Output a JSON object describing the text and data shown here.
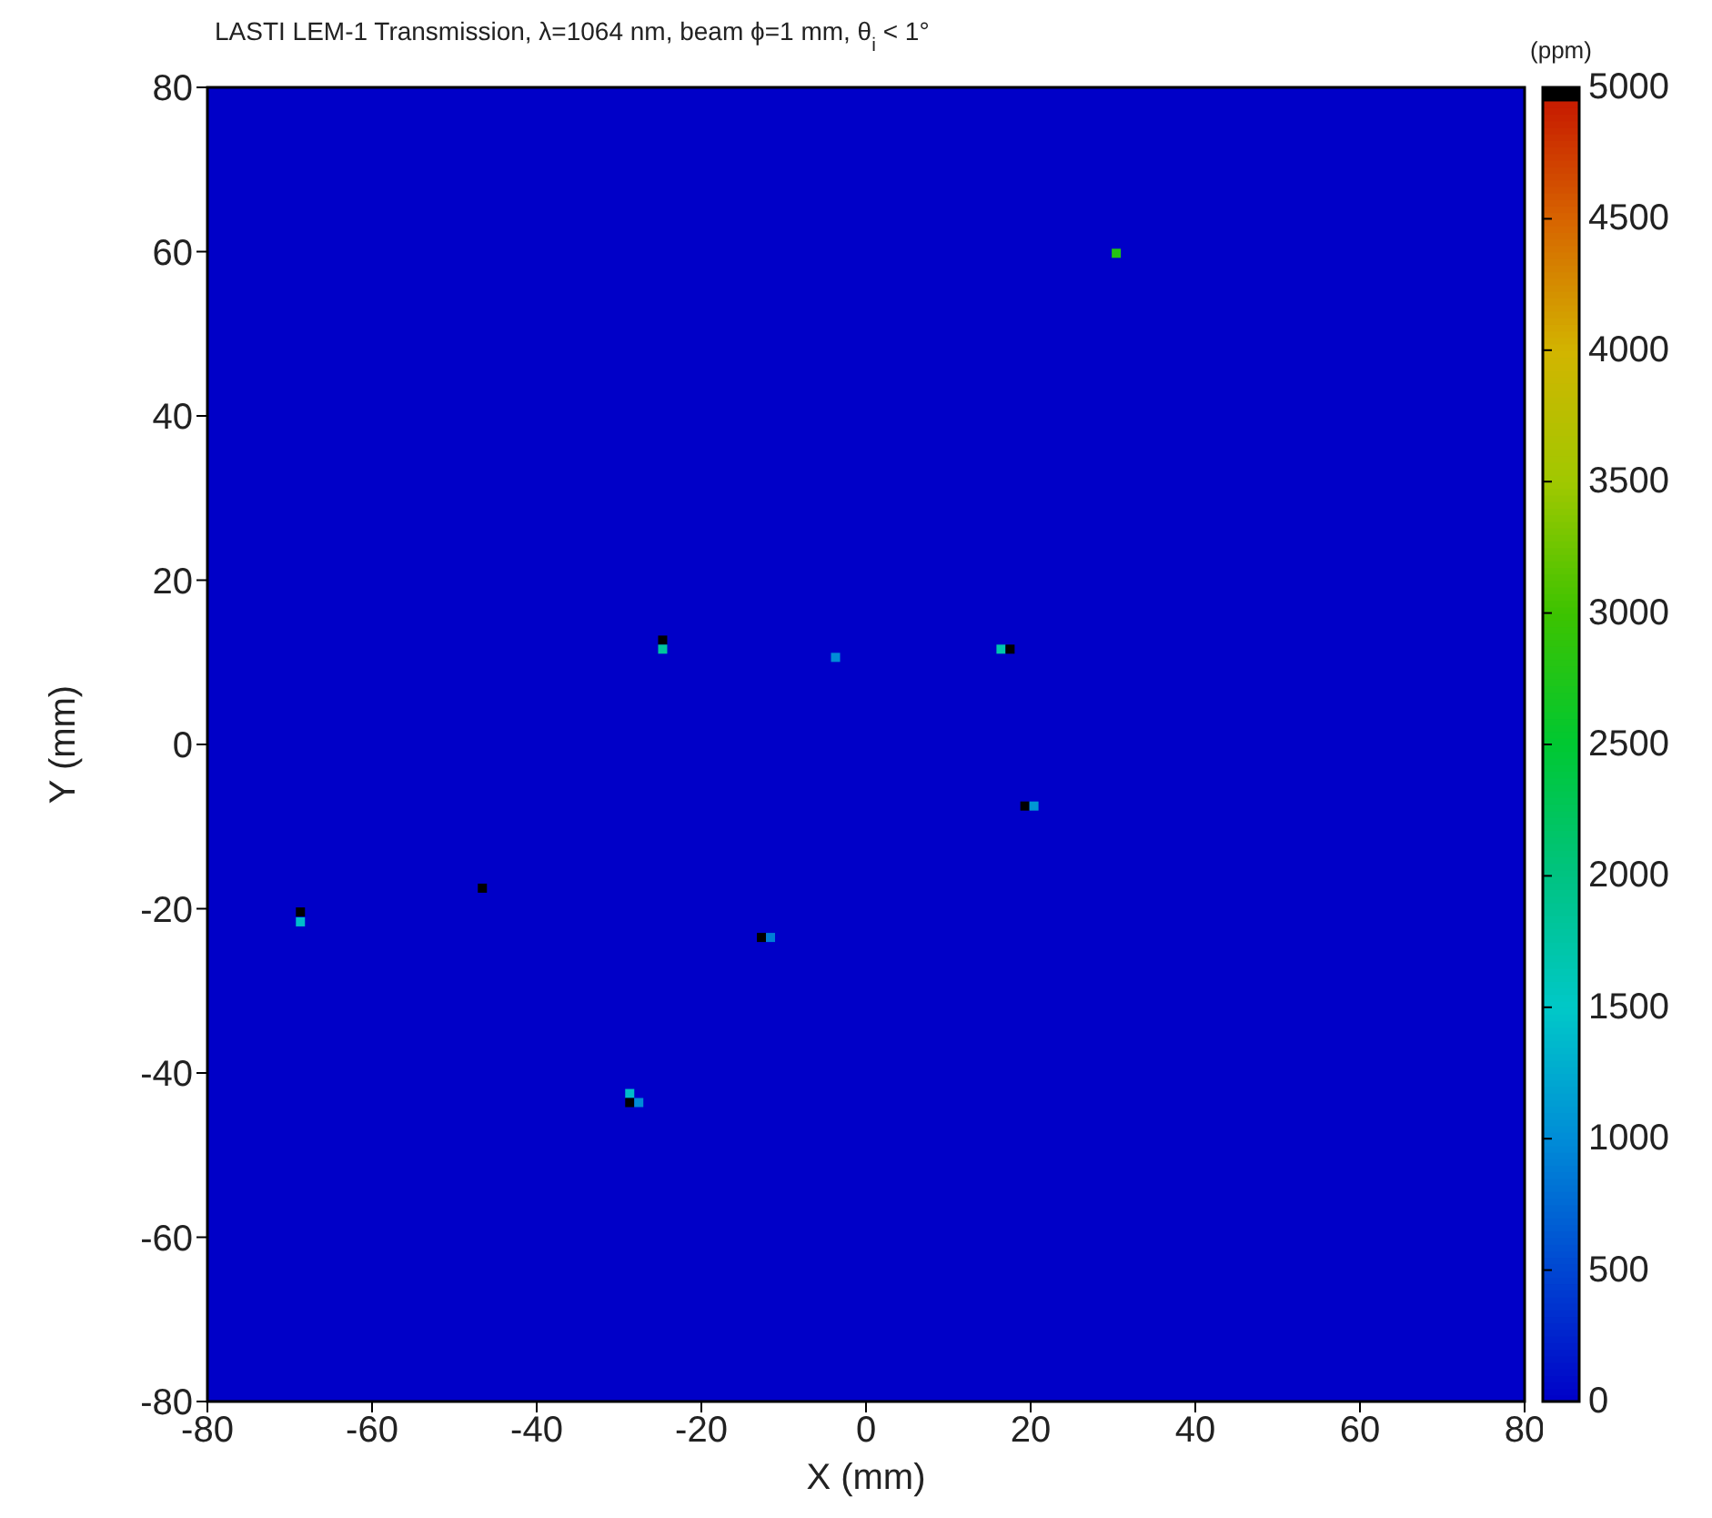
{
  "chart_data": {
    "type": "scatter",
    "title": "LASTI LEM-1 Transmission, λ=1064 nm, beam ϕ=1 mm, θ$_{i}$ < 1°",
    "xlabel": "X (mm)",
    "ylabel": "Y (mm)",
    "clabel": "(ppm)",
    "marker": "square",
    "x": [
      -24.7,
      -24.7,
      -3.7,
      16.4,
      17.5,
      19.3,
      20.4,
      -68.7,
      -68.7,
      -46.6,
      -12.7,
      -11.6,
      -28.7,
      -28.7,
      -27.6,
      30.4
    ],
    "values": [
      12.7,
      11.6,
      10.6,
      11.6,
      11.6,
      -7.5,
      -7.5,
      -20.4,
      -21.6,
      -17.5,
      -23.5,
      -23.5,
      -42.5,
      -43.6,
      -43.6,
      59.8
    ],
    "cvalues": [
      5000,
      1800,
      1000,
      1700,
      5000,
      5000,
      1100,
      5000,
      1400,
      5000,
      5000,
      900,
      1400,
      5000,
      1000,
      2800
    ],
    "xlim": [
      -80,
      80
    ],
    "ylim": [
      -80,
      80
    ],
    "xticks": [
      -80,
      -60,
      -40,
      -20,
      0,
      20,
      40,
      60,
      80
    ],
    "yticks": [
      -80,
      -60,
      -40,
      -20,
      0,
      20,
      40,
      60,
      80
    ],
    "clim": [
      0,
      5000
    ],
    "cticks": [
      0,
      500,
      1000,
      1500,
      2000,
      2500,
      3000,
      3500,
      4000,
      4500,
      5000
    ]
  }
}
